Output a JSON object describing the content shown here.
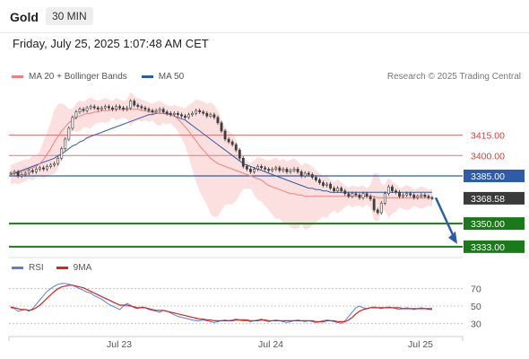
{
  "header": {
    "instrument": "Gold",
    "interval": "30 MIN"
  },
  "date_line": "Friday, July 25, 2025 1:07:48 AM CET",
  "legend": {
    "ma20": "MA 20 + Bollinger Bands",
    "ma50": "MA 50",
    "credit": "Research © 2025 Trading Central"
  },
  "rsi_legend": {
    "rsi": "RSI",
    "ma": "9MA"
  },
  "colors": {
    "ma20": "#f08080",
    "ma50": "#2e5ca8",
    "bollinger_fill": "#fbd4d4",
    "candle": "#3d3d3d",
    "support": "#1a7a1a",
    "resistance": "#e87878",
    "pivot": "#2e5ca8",
    "arrow": "#2e5ca8",
    "rsi": "#5b7fd1",
    "rsi_ma": "#d62222"
  },
  "chart_data": [
    {
      "type": "candlestick",
      "x_labels": [
        "Jul 23",
        "Jul 24",
        "Jul 25"
      ],
      "ylim": [
        3325,
        3445
      ],
      "levels": [
        {
          "value": 3415.0,
          "label": "3415.00",
          "kind": "resistance"
        },
        {
          "value": 3400.0,
          "label": "3400.00",
          "kind": "resistance"
        },
        {
          "value": 3385.0,
          "label": "3385.00",
          "kind": "pivot"
        },
        {
          "value": 3368.58,
          "label": "3368.58",
          "kind": "last"
        },
        {
          "value": 3350.0,
          "label": "3350.00",
          "kind": "support"
        },
        {
          "value": 3333.0,
          "label": "3333.00",
          "kind": "support"
        }
      ],
      "forecast_arrow": {
        "from": 3369,
        "to": 3335
      },
      "close": [
        3387,
        3388,
        3385,
        3386,
        3387,
        3389,
        3388,
        3390,
        3391,
        3390,
        3392,
        3393,
        3394,
        3398,
        3405,
        3412,
        3420,
        3428,
        3432,
        3434,
        3433,
        3435,
        3436,
        3435,
        3434,
        3435,
        3436,
        3435,
        3434,
        3436,
        3435,
        3434,
        3435,
        3440,
        3437,
        3436,
        3435,
        3434,
        3433,
        3432,
        3433,
        3434,
        3432,
        3431,
        3430,
        3431,
        3430,
        3429,
        3428,
        3430,
        3431,
        3433,
        3432,
        3431,
        3429,
        3430,
        3428,
        3424,
        3418,
        3412,
        3410,
        3408,
        3404,
        3398,
        3392,
        3390,
        3388,
        3390,
        3392,
        3391,
        3390,
        3389,
        3390,
        3391,
        3389,
        3390,
        3388,
        3389,
        3390,
        3388,
        3385,
        3387,
        3386,
        3384,
        3382,
        3380,
        3378,
        3379,
        3376,
        3374,
        3376,
        3374,
        3372,
        3370,
        3372,
        3371,
        3369,
        3372,
        3370,
        3368,
        3360,
        3358,
        3365,
        3372,
        3377,
        3374,
        3373,
        3370,
        3371,
        3372,
        3371,
        3369,
        3370,
        3371,
        3370,
        3369,
        3368.58
      ],
      "ma20": [
        3386,
        3387,
        3387,
        3388,
        3389,
        3390,
        3391,
        3392,
        3394,
        3397,
        3401,
        3405,
        3410,
        3414,
        3418,
        3421,
        3424,
        3426,
        3428,
        3429,
        3430,
        3431,
        3431,
        3432,
        3432,
        3433,
        3433,
        3433,
        3434,
        3434,
        3434,
        3434,
        3434,
        3434,
        3434,
        3434,
        3433,
        3433,
        3432,
        3432,
        3431,
        3431,
        3431,
        3430,
        3430,
        3429,
        3427,
        3424,
        3421,
        3418,
        3414,
        3411,
        3407,
        3404,
        3401,
        3398,
        3396,
        3394,
        3393,
        3392,
        3391,
        3390,
        3389,
        3388,
        3387,
        3386,
        3385,
        3384,
        3383,
        3382,
        3380,
        3378,
        3377,
        3376,
        3375,
        3374,
        3373,
        3372,
        3372,
        3371,
        3371,
        3370,
        3370,
        3370,
        3370,
        3370,
        3370,
        3370,
        3370,
        3370,
        3370,
        3370,
        3370,
        3370,
        3370,
        3370,
        3370,
        3370,
        3370,
        3370,
        3370,
        3369,
        3369,
        3369,
        3369,
        3369,
        3369,
        3369,
        3369,
        3369,
        3369,
        3369,
        3369,
        3369,
        3369,
        3369,
        3369
      ],
      "ma50": [
        3386,
        3387,
        3388,
        3389,
        3390,
        3391,
        3392,
        3393,
        3394,
        3395,
        3396,
        3397,
        3398,
        3400,
        3401,
        3403,
        3405,
        3407,
        3408,
        3410,
        3411,
        3413,
        3414,
        3415,
        3416,
        3417,
        3418,
        3419,
        3420,
        3421,
        3422,
        3423,
        3424,
        3425,
        3426,
        3427,
        3428,
        3429,
        3430,
        3430,
        3431,
        3431,
        3431,
        3431,
        3430,
        3429,
        3428,
        3427,
        3426,
        3424,
        3422,
        3420,
        3418,
        3416,
        3414,
        3412,
        3410,
        3408,
        3406,
        3404,
        3402,
        3400,
        3398,
        3396,
        3394,
        3393,
        3392,
        3391,
        3390,
        3389,
        3388,
        3387,
        3386,
        3385,
        3384,
        3383,
        3382,
        3381,
        3380,
        3379,
        3378,
        3377,
        3376,
        3376,
        3375,
        3375,
        3374,
        3374,
        3373,
        3373,
        3373,
        3373,
        3373,
        3373,
        3373,
        3373,
        3373,
        3373,
        3373,
        3373,
        3373,
        3373,
        3373,
        3373,
        3373,
        3373,
        3373,
        3373,
        3373,
        3373,
        3373,
        3373,
        3373,
        3373,
        3373,
        3373,
        3373
      ],
      "rsi_ylim": [
        20,
        80
      ],
      "rsi_levels": [
        70,
        50,
        30
      ],
      "rsi": [
        48,
        47,
        44,
        45,
        46,
        44,
        47,
        52,
        57,
        62,
        67,
        70,
        73,
        75,
        76,
        76,
        75,
        74,
        72,
        70,
        68,
        66,
        65,
        62,
        60,
        58,
        55,
        52,
        50,
        48,
        46,
        50,
        53,
        51,
        48,
        47,
        49,
        48,
        46,
        45,
        44,
        43,
        45,
        44,
        42,
        40,
        38,
        37,
        36,
        35,
        34,
        33,
        33,
        34,
        33,
        32,
        31,
        32,
        33,
        34,
        33,
        34,
        35,
        34,
        33,
        33,
        32,
        33,
        34,
        35,
        33,
        32,
        33,
        34,
        33,
        32,
        31,
        32,
        33,
        34,
        33,
        32,
        33,
        32,
        31,
        32,
        33,
        34,
        33,
        32,
        31,
        30,
        33,
        38,
        43,
        48,
        50,
        48,
        47,
        48,
        49,
        48,
        47,
        48,
        49,
        48,
        47,
        46,
        47,
        48,
        47,
        46,
        47,
        48,
        47,
        46,
        46
      ],
      "rsi_ma": [
        49,
        48,
        47,
        46,
        46,
        45,
        46,
        48,
        51,
        55,
        59,
        63,
        67,
        70,
        72,
        73,
        74,
        74,
        73,
        72,
        71,
        69,
        67,
        65,
        63,
        61,
        59,
        57,
        55,
        53,
        51,
        51,
        51,
        50,
        49,
        48,
        48,
        48,
        47,
        46,
        45,
        45,
        45,
        44,
        43,
        42,
        41,
        40,
        39,
        38,
        37,
        36,
        35,
        35,
        34,
        34,
        33,
        33,
        33,
        33,
        33,
        33,
        34,
        34,
        34,
        34,
        33,
        33,
        33,
        34,
        34,
        33,
        33,
        33,
        33,
        33,
        33,
        33,
        33,
        33,
        33,
        33,
        33,
        33,
        32,
        32,
        32,
        33,
        33,
        33,
        32,
        32,
        32,
        34,
        37,
        41,
        44,
        46,
        47,
        48,
        48,
        48,
        48,
        48,
        48,
        48,
        48,
        48,
        47,
        47,
        47,
        47,
        47,
        47,
        47,
        47,
        47
      ]
    }
  ]
}
